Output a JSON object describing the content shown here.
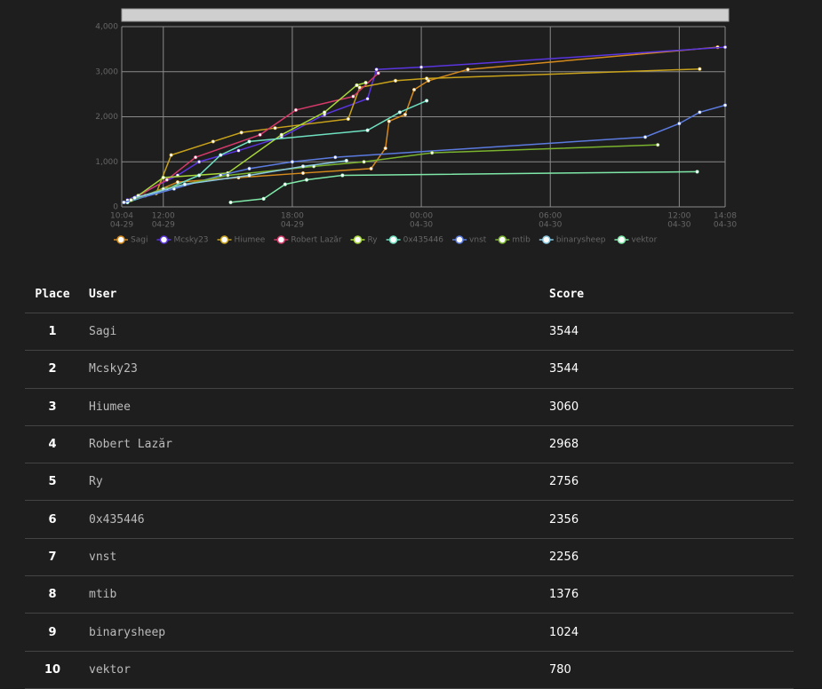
{
  "chart_data": {
    "type": "line",
    "xlim": [
      "04-29 10:04",
      "04-30 14:08"
    ],
    "xticks": [
      {
        "value": "04-29 10:04",
        "label": [
          "10:04",
          "04-29"
        ]
      },
      {
        "value": "04-29 12:00",
        "label": [
          "12:00",
          "04-29"
        ]
      },
      {
        "value": "04-29 18:00",
        "label": [
          "18:00",
          "04-29"
        ]
      },
      {
        "value": "04-30 00:00",
        "label": [
          "00:00",
          "04-30"
        ]
      },
      {
        "value": "04-30 06:00",
        "label": [
          "06:00",
          "04-30"
        ]
      },
      {
        "value": "04-30 12:00",
        "label": [
          "12:00",
          "04-30"
        ]
      },
      {
        "value": "04-30 14:08",
        "label": [
          "14:08",
          "04-30"
        ]
      }
    ],
    "ylim": [
      0,
      4000
    ],
    "yticks": [
      0,
      {
        "value": 1000,
        "label": "1,000"
      },
      {
        "value": 2000,
        "label": "2,000"
      },
      {
        "value": 3000,
        "label": "3,000"
      },
      {
        "value": 4000,
        "label": "4,000"
      }
    ],
    "grid": true,
    "series": [
      {
        "name": "Sagi",
        "color": "#d58a1d",
        "x": [
          "04-29 10:10",
          "04-29 11:10",
          "04-29 12:40",
          "04-29 15:30",
          "04-29 18:30",
          "04-29 21:40",
          "04-29 22:20",
          "04-29 22:30",
          "04-29 23:15",
          "04-29 23:40",
          "04-30 00:20",
          "04-30 02:10",
          "04-30 13:47"
        ],
        "values": [
          100,
          250,
          550,
          650,
          750,
          850,
          1300,
          1900,
          2050,
          2600,
          2800,
          3050,
          3544
        ]
      },
      {
        "name": "Mcsky23",
        "color": "#5a35e0",
        "x": [
          "04-29 10:20",
          "04-29 12:40",
          "04-29 13:40",
          "04-29 15:30",
          "04-29 17:30",
          "04-29 19:30",
          "04-29 21:30",
          "04-29 21:55",
          "04-30 00:00",
          "04-30 14:08"
        ],
        "values": [
          150,
          700,
          1000,
          1250,
          1550,
          2050,
          2400,
          3050,
          3100,
          3544
        ]
      },
      {
        "name": "Hiumee",
        "color": "#c8a21a",
        "x": [
          "04-29 10:30",
          "04-29 11:40",
          "04-29 12:22",
          "04-29 14:19",
          "04-29 15:38",
          "04-29 17:12",
          "04-29 20:36",
          "04-29 21:08",
          "04-29 22:48",
          "04-30 00:15",
          "04-30 12:57"
        ],
        "values": [
          150,
          300,
          1150,
          1450,
          1650,
          1750,
          1950,
          2650,
          2800,
          2850,
          3060
        ]
      },
      {
        "name": "Robert Lazăr",
        "color": "#d43a6a",
        "x": [
          "04-29 10:40",
          "04-29 12:10",
          "04-29 13:30",
          "04-29 16:30",
          "04-29 18:10",
          "04-29 20:50",
          "04-29 22:00"
        ],
        "values": [
          200,
          600,
          1100,
          1600,
          2150,
          2450,
          2968
        ]
      },
      {
        "name": "Ry",
        "color": "#a8d83a",
        "x": [
          "04-29 10:50",
          "04-29 12:00",
          "04-29 15:00",
          "04-29 17:30",
          "04-29 19:30",
          "04-29 21:00",
          "04-29 21:25"
        ],
        "values": [
          250,
          650,
          750,
          1600,
          2100,
          2700,
          2756
        ]
      },
      {
        "name": "0x435446",
        "color": "#6fe0c0",
        "x": [
          "04-29 10:20",
          "04-29 12:10",
          "04-29 13:40",
          "04-29 14:40",
          "04-29 16:00",
          "04-29 21:30",
          "04-29 23:00",
          "04-30 00:15"
        ],
        "values": [
          100,
          400,
          700,
          1150,
          1450,
          1700,
          2100,
          2356
        ]
      },
      {
        "name": "vnst",
        "color": "#5b7be0",
        "x": [
          "04-29 10:10",
          "04-29 12:30",
          "04-29 14:40",
          "04-29 16:00",
          "04-29 18:00",
          "04-29 20:00",
          "04-30 10:25",
          "04-30 12:00",
          "04-30 12:57",
          "04-30 14:08"
        ],
        "values": [
          100,
          400,
          700,
          850,
          1000,
          1100,
          1550,
          1850,
          2100,
          2256
        ]
      },
      {
        "name": "mtib",
        "color": "#7ab32e",
        "x": [
          "04-29 10:30",
          "04-29 12:00",
          "04-29 15:00",
          "04-29 19:00",
          "04-29 21:20",
          "04-30 00:30",
          "04-30 11:00"
        ],
        "values": [
          150,
          400,
          700,
          900,
          1000,
          1200,
          1376
        ]
      },
      {
        "name": "binarysheep",
        "color": "#8ac8e0",
        "x": [
          "04-29 10:40",
          "04-29 13:00",
          "04-29 16:00",
          "04-29 18:30",
          "04-29 20:31"
        ],
        "values": [
          200,
          500,
          700,
          900,
          1024
        ]
      },
      {
        "name": "vektor",
        "color": "#7fe8a8",
        "x": [
          "04-29 15:08",
          "04-29 16:40",
          "04-29 17:40",
          "04-29 18:40",
          "04-29 20:20",
          "04-30 12:50"
        ],
        "values": [
          100,
          180,
          500,
          600,
          700,
          780
        ]
      }
    ]
  },
  "table": {
    "headers": [
      "Place",
      "User",
      "Score"
    ],
    "rows": [
      [
        "1",
        "Sagi",
        "3544"
      ],
      [
        "2",
        "Mcsky23",
        "3544"
      ],
      [
        "3",
        "Hiumee",
        "3060"
      ],
      [
        "4",
        "Robert Lazăr",
        "2968"
      ],
      [
        "5",
        "Ry",
        "2756"
      ],
      [
        "6",
        "0x435446",
        "2356"
      ],
      [
        "7",
        "vnst",
        "2256"
      ],
      [
        "8",
        "mtib",
        "1376"
      ],
      [
        "9",
        "binarysheep",
        "1024"
      ],
      [
        "10",
        "vektor",
        "780"
      ]
    ]
  }
}
